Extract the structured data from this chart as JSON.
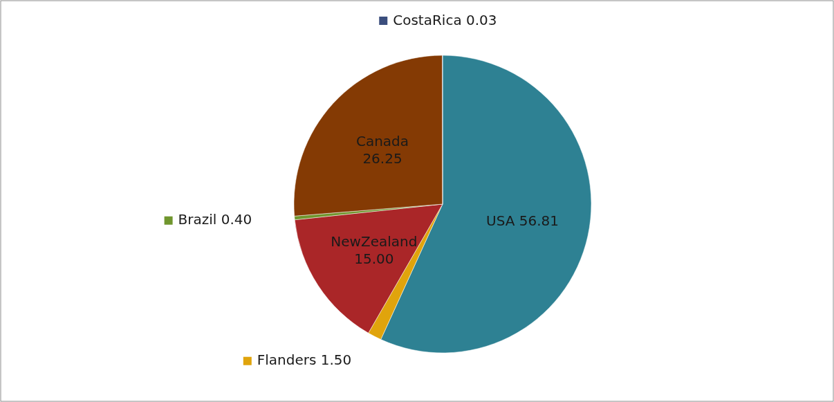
{
  "chart_data": {
    "type": "pie",
    "categories": [
      "USA",
      "Flanders",
      "NewZealand",
      "Brazil",
      "Canada",
      "CostaRica"
    ],
    "values": [
      56.81,
      1.5,
      15.0,
      0.4,
      26.25,
      0.03
    ],
    "colors": [
      "#2e8193",
      "#e0a40c",
      "#aa2628",
      "#70962e",
      "#843a04",
      "#3b4e7d"
    ],
    "value_labels": [
      "56.81",
      "1.50",
      "15.00",
      "0.40",
      "26.25",
      "0.03"
    ],
    "legend": "left"
  }
}
